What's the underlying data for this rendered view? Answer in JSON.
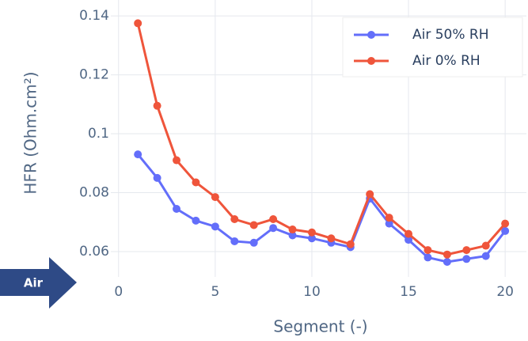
{
  "chart_data": {
    "type": "line",
    "xlabel": "Segment (-)",
    "ylabel": "HFR (Ohm.cm²)",
    "annotation": "Air",
    "x": [
      1,
      2,
      3,
      4,
      5,
      6,
      7,
      8,
      9,
      10,
      11,
      12,
      13,
      14,
      15,
      16,
      17,
      18,
      19,
      20
    ],
    "series": [
      {
        "name": "Air 50% RH",
        "color": "#636efa",
        "values": [
          0.093,
          0.085,
          0.0745,
          0.0705,
          0.0685,
          0.0635,
          0.063,
          0.068,
          0.0655,
          0.0645,
          0.063,
          0.0615,
          0.078,
          0.0695,
          0.064,
          0.058,
          0.0565,
          0.0575,
          0.0585,
          0.067
        ]
      },
      {
        "name": "Air 0% RH",
        "color": "#ef553b",
        "values": [
          0.1375,
          0.1095,
          0.091,
          0.0835,
          0.0785,
          0.071,
          0.069,
          0.071,
          0.0675,
          0.0665,
          0.0645,
          0.0625,
          0.0795,
          0.0715,
          0.066,
          0.0605,
          0.059,
          0.0605,
          0.062,
          0.0695
        ]
      }
    ],
    "xlim": [
      -0.4,
      21.1
    ],
    "xticks": [
      0,
      5,
      10,
      15,
      20
    ],
    "ylim": [
      0.0514,
      0.1454
    ],
    "yticks": [
      0.06,
      0.08,
      0.1,
      0.12,
      0.14
    ],
    "grid": true,
    "legend": "upper right"
  }
}
